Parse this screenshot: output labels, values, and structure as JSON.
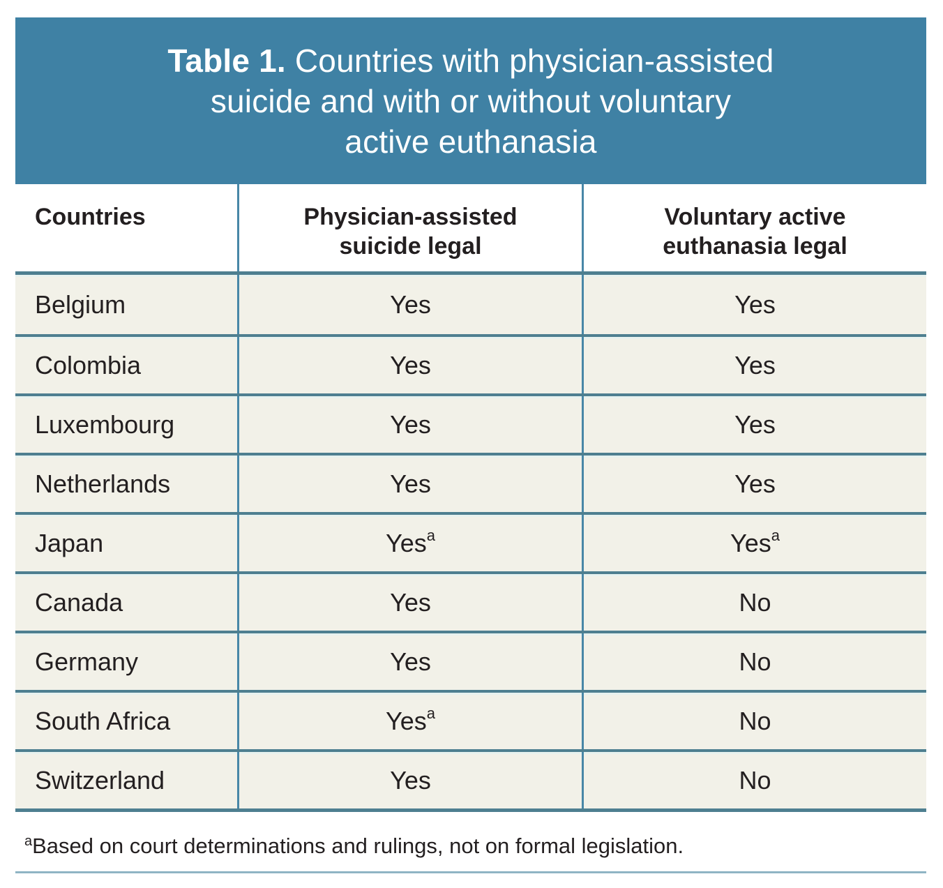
{
  "title": {
    "label": "Table 1.",
    "line1_rest": "Countries with physician-assisted",
    "line2": "suicide and with or without voluntary",
    "line3": "active euthanasia"
  },
  "table": {
    "columns": {
      "countries": "Countries",
      "pas": "Physician-assisted\nsuicide legal",
      "vae": "Voluntary active\neuthanasia legal"
    },
    "rows": [
      {
        "country": "Belgium",
        "pas": "Yes",
        "pas_sup": "",
        "vae": "Yes",
        "vae_sup": ""
      },
      {
        "country": "Colombia",
        "pas": "Yes",
        "pas_sup": "",
        "vae": "Yes",
        "vae_sup": ""
      },
      {
        "country": "Luxembourg",
        "pas": "Yes",
        "pas_sup": "",
        "vae": "Yes",
        "vae_sup": ""
      },
      {
        "country": "Netherlands",
        "pas": "Yes",
        "pas_sup": "",
        "vae": "Yes",
        "vae_sup": ""
      },
      {
        "country": "Japan",
        "pas": "Yes",
        "pas_sup": "a",
        "vae": "Yes",
        "vae_sup": "a"
      },
      {
        "country": "Canada",
        "pas": "Yes",
        "pas_sup": "",
        "vae": "No",
        "vae_sup": ""
      },
      {
        "country": "Germany",
        "pas": "Yes",
        "pas_sup": "",
        "vae": "No",
        "vae_sup": ""
      },
      {
        "country": "South Africa",
        "pas": "Yes",
        "pas_sup": "a",
        "vae": "No",
        "vae_sup": ""
      },
      {
        "country": "Switzerland",
        "pas": "Yes",
        "pas_sup": "",
        "vae": "No",
        "vae_sup": ""
      }
    ]
  },
  "footnote": {
    "marker": "a",
    "text": "Based on court determinations and rulings, not on formal legislation."
  },
  "colors": {
    "teal": "#3F81A4",
    "sep": "#4E7F90",
    "divider": "#4887A7",
    "band": "#E8F2EF",
    "cream": "#F2F1E8",
    "ink": "#231F20",
    "rule": "#8FB4C4",
    "paper": "#FFFFFF"
  }
}
